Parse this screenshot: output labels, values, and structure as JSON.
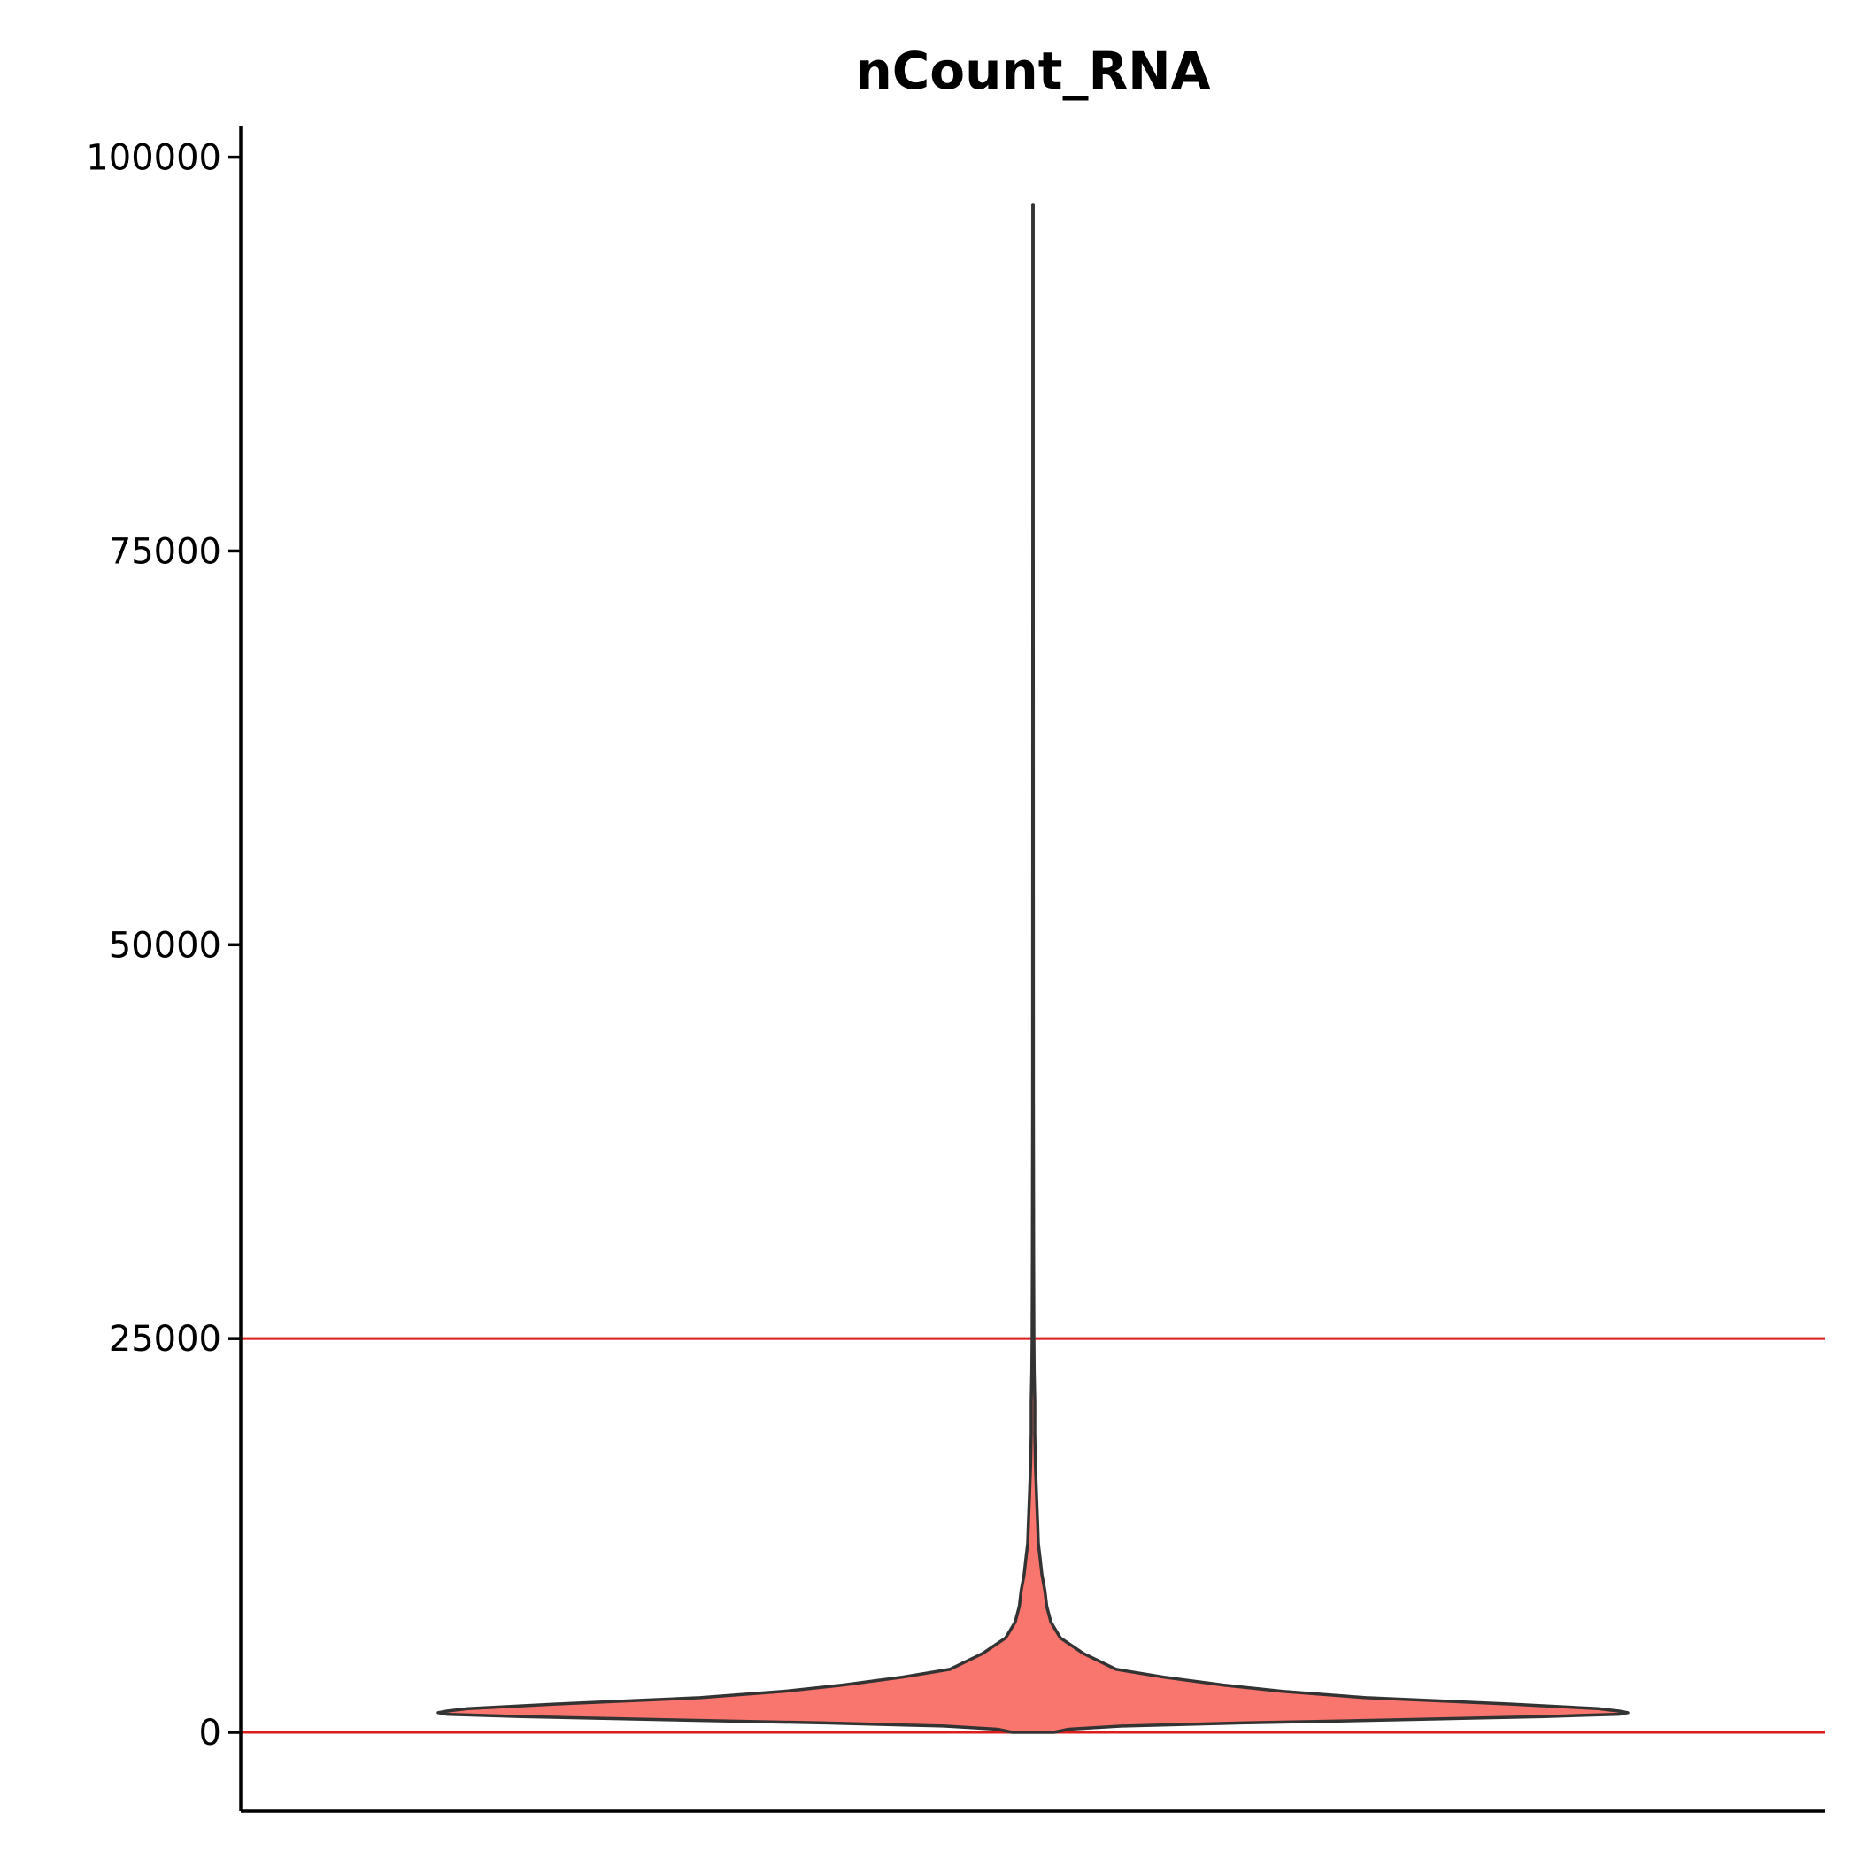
{
  "chart_data": {
    "type": "violin",
    "title": "nCount_RNA",
    "xlabel": "",
    "ylabel": "",
    "ylim": [
      -5000,
      102000
    ],
    "yticks": [
      0,
      25000,
      50000,
      75000,
      100000
    ],
    "ytick_labels": [
      "0",
      "25000",
      "50000",
      "75000",
      "100000"
    ],
    "grid": false,
    "legend": "none",
    "fill_color": "#f8766d",
    "outline_color": "#333333",
    "threshold_color": "#dd1c1c",
    "threshold_lines": [
      0,
      25000
    ],
    "violin": {
      "y_min": 0,
      "y_max": 97000,
      "density_profile": [
        {
          "y": 0,
          "w": 0.035
        },
        {
          "y": 200,
          "w": 0.06
        },
        {
          "y": 400,
          "w": 0.15
        },
        {
          "y": 600,
          "w": 0.35
        },
        {
          "y": 800,
          "w": 0.62
        },
        {
          "y": 1000,
          "w": 0.86
        },
        {
          "y": 1150,
          "w": 0.985
        },
        {
          "y": 1250,
          "w": 1.0
        },
        {
          "y": 1350,
          "w": 0.985
        },
        {
          "y": 1500,
          "w": 0.95
        },
        {
          "y": 1800,
          "w": 0.8
        },
        {
          "y": 2200,
          "w": 0.56
        },
        {
          "y": 2600,
          "w": 0.42
        },
        {
          "y": 3000,
          "w": 0.32
        },
        {
          "y": 3500,
          "w": 0.22
        },
        {
          "y": 4000,
          "w": 0.14
        },
        {
          "y": 5000,
          "w": 0.085
        },
        {
          "y": 6000,
          "w": 0.046
        },
        {
          "y": 7000,
          "w": 0.03
        },
        {
          "y": 8000,
          "w": 0.023
        },
        {
          "y": 9000,
          "w": 0.02
        },
        {
          "y": 10000,
          "w": 0.015
        },
        {
          "y": 11000,
          "w": 0.012
        },
        {
          "y": 12000,
          "w": 0.009
        },
        {
          "y": 13000,
          "w": 0.008
        },
        {
          "y": 14000,
          "w": 0.007
        },
        {
          "y": 15000,
          "w": 0.006
        },
        {
          "y": 17000,
          "w": 0.004
        },
        {
          "y": 19000,
          "w": 0.003
        },
        {
          "y": 21000,
          "w": 0.003
        },
        {
          "y": 23000,
          "w": 0.002
        },
        {
          "y": 25000,
          "w": 0.0015
        },
        {
          "y": 30000,
          "w": 0.001
        },
        {
          "y": 40000,
          "w": 0.0006
        },
        {
          "y": 60000,
          "w": 0.0004
        },
        {
          "y": 80000,
          "w": 0.0003
        },
        {
          "y": 97000,
          "w": 0.0003
        }
      ]
    }
  }
}
